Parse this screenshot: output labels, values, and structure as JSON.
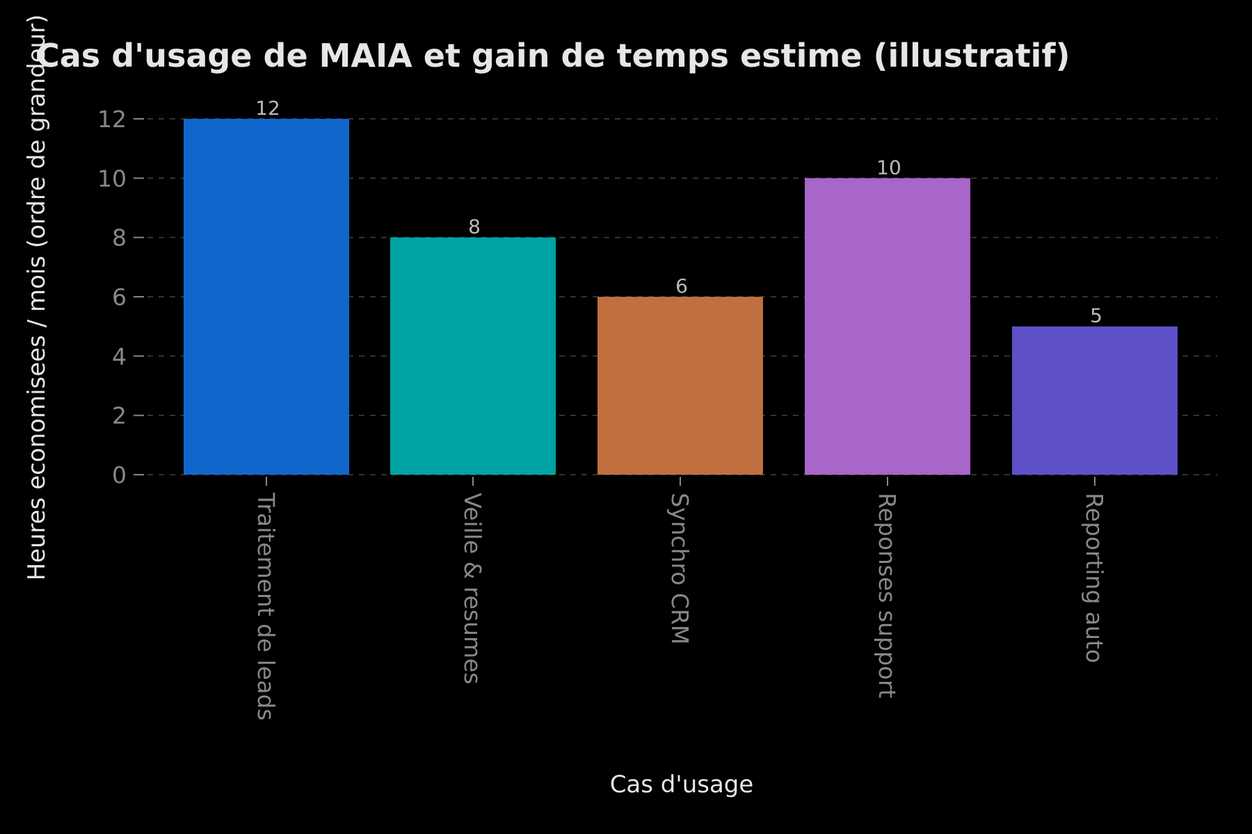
{
  "chart_data": {
    "type": "bar",
    "title": "Cas d'usage de MAIA et gain de temps estime (illustratif)",
    "xlabel": "Cas d'usage",
    "ylabel": "Heures economisees / mois (ordre de grandeur)",
    "categories": [
      "Traitement de leads",
      "Veille & resumes",
      "Synchro CRM",
      "Reponses support",
      "Reporting auto"
    ],
    "values": [
      12,
      8,
      6,
      10,
      5
    ],
    "value_labels": [
      "12",
      "8",
      "6",
      "10",
      "5"
    ],
    "bar_colors": [
      "#1166cc",
      "#00a3a3",
      "#c06f3f",
      "#a866c8",
      "#5e50c8"
    ],
    "ylim": [
      0,
      12
    ],
    "yticks": [
      0,
      2,
      4,
      6,
      8,
      10,
      12
    ],
    "ytick_labels": [
      "0",
      "2",
      "4",
      "6",
      "8",
      "10",
      "12"
    ],
    "grid": "horizontal-dashed",
    "legend": "none",
    "colors": {
      "background": "#000000",
      "title": "#e6e6e6",
      "axis_label": "#e6e6e6",
      "tick_label": "#888888",
      "data_label": "#bbbbbb",
      "grid": "#444444"
    }
  }
}
